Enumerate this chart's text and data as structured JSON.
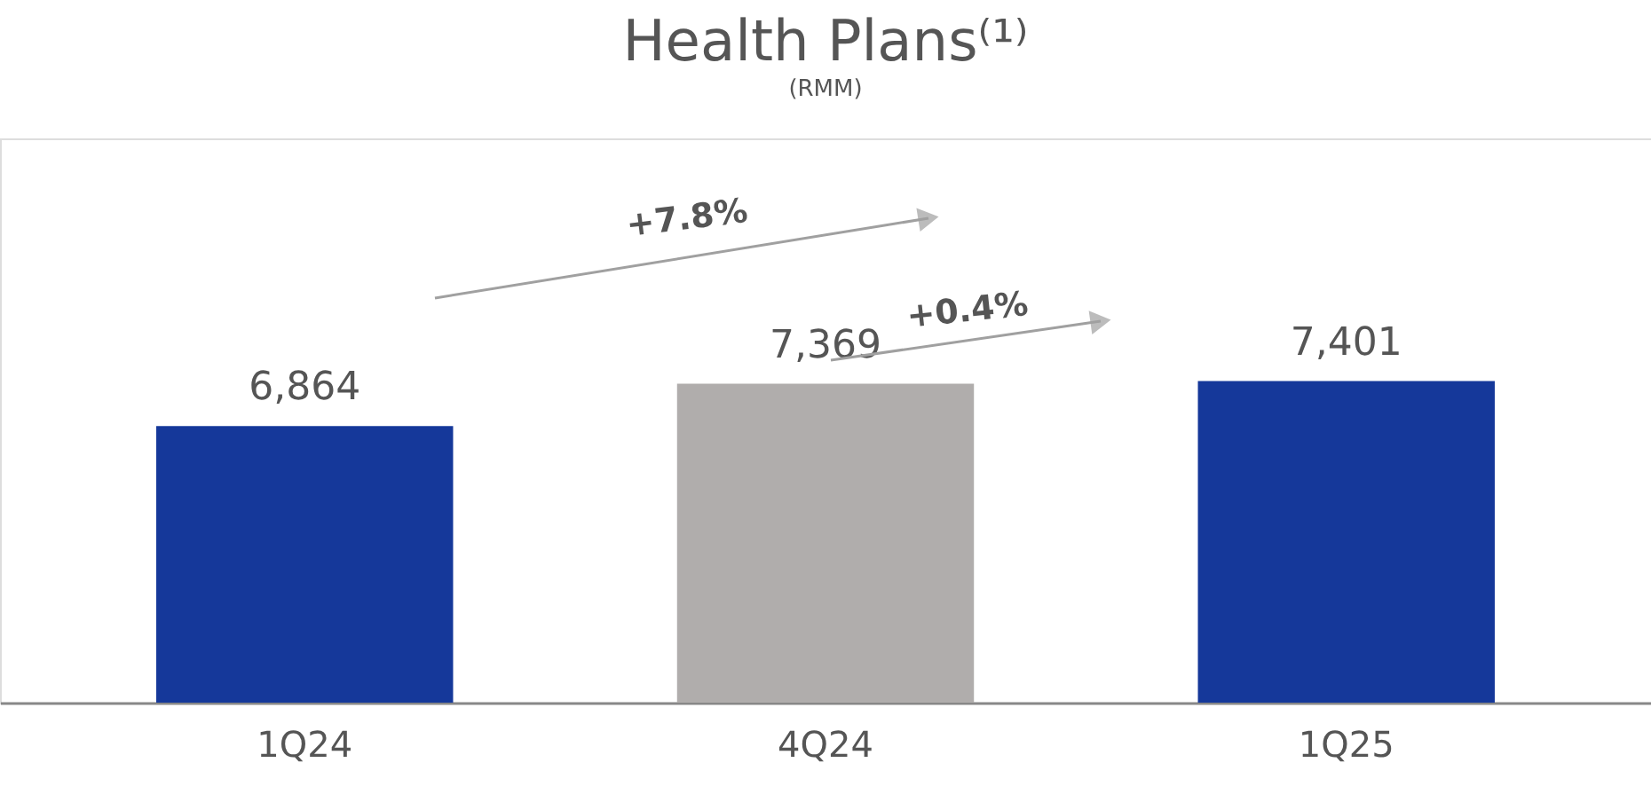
{
  "chart_data": {
    "type": "bar",
    "title": "Health Plans⁽¹⁾",
    "subtitle": "(RMM)",
    "categories": [
      "1Q24",
      "4Q24",
      "1Q25"
    ],
    "values": [
      6864,
      7369,
      7401
    ],
    "colors": [
      "#15389a",
      "#b0adac",
      "#15389a"
    ],
    "value_labels": [
      "6,864",
      "7,369",
      "7,401"
    ],
    "ylim": [
      3560,
      10300
    ],
    "grid": false,
    "annotations": [
      "+7.8%",
      "+0.4%"
    ]
  }
}
